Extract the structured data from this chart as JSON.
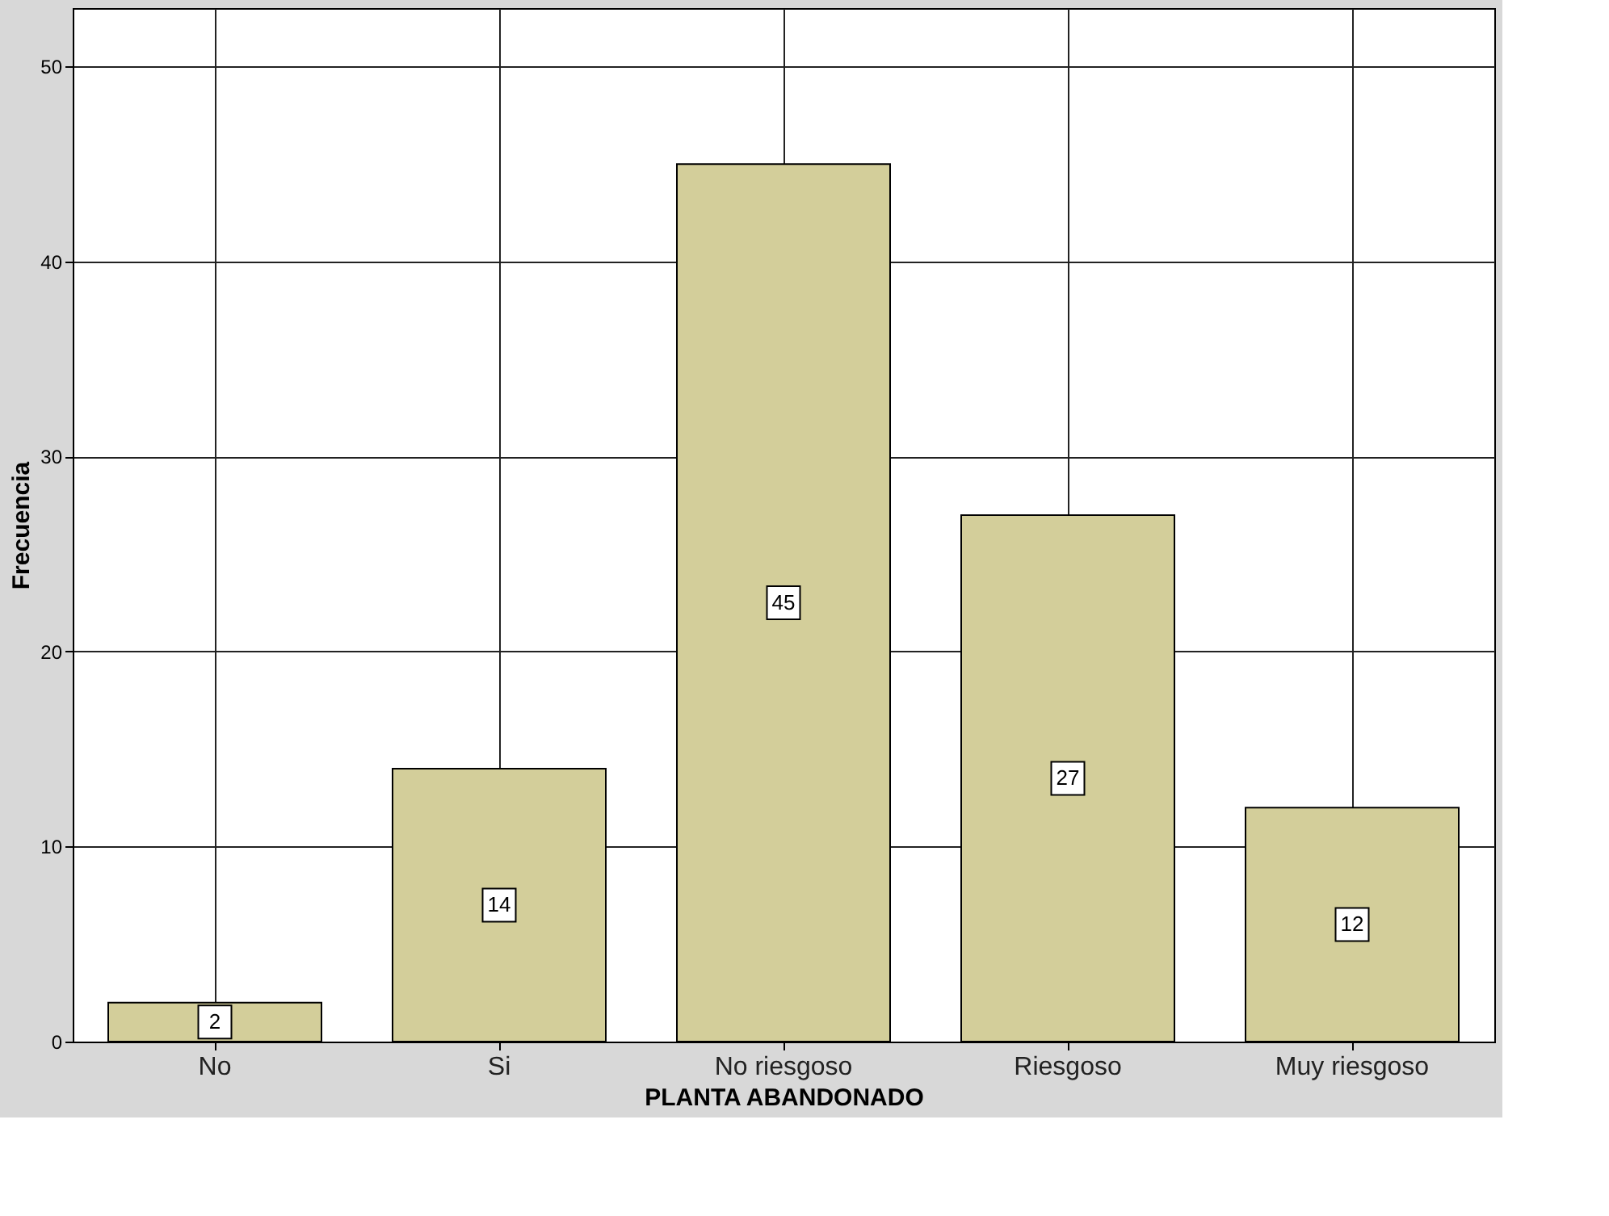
{
  "chart_data": {
    "type": "bar",
    "xlabel": "PLANTA ABANDONADO",
    "ylabel": "Frecuencia",
    "categories": [
      "No",
      "Si",
      "No riesgoso",
      "Riesgoso",
      "Muy riesgoso"
    ],
    "values": [
      2,
      14,
      45,
      27,
      12
    ],
    "color": "#d3ce9a",
    "ylim": [
      0,
      53
    ],
    "yticks": [
      0,
      10,
      20,
      30,
      40,
      50
    ],
    "grid": true,
    "data_labels": true
  }
}
